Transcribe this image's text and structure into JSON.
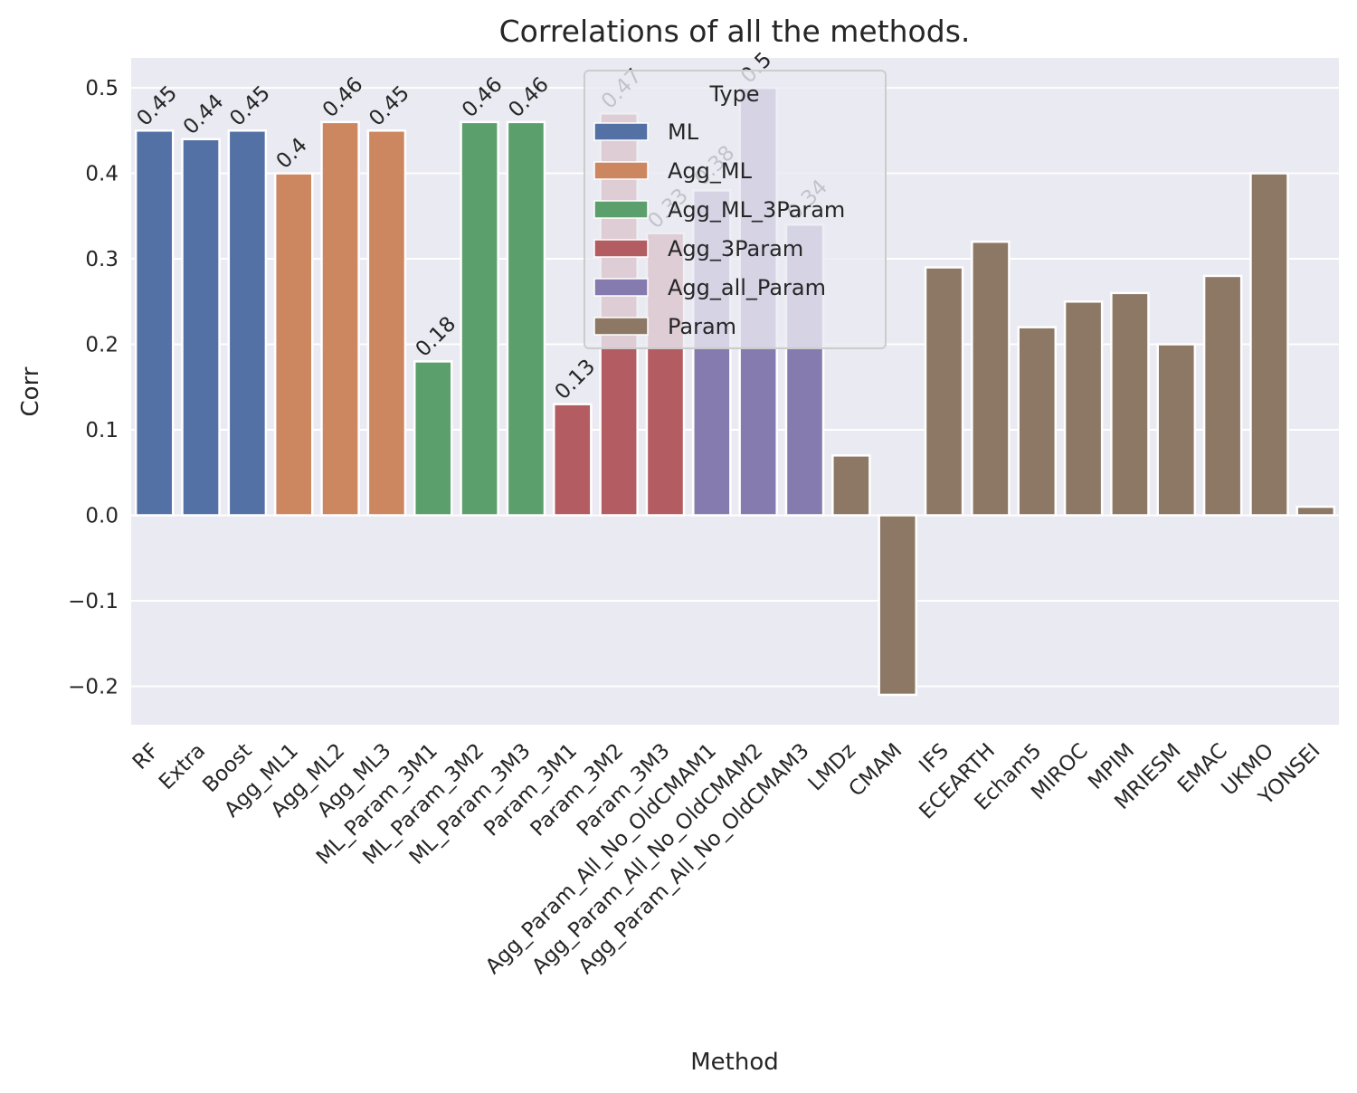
{
  "chart_data": {
    "type": "bar",
    "title": "Correlations of all the methods.",
    "xlabel": "Method",
    "ylabel": "Corr",
    "ylim": [
      -0.245,
      0.535
    ],
    "yticks": [
      "−0.2",
      "−0.1",
      "0.0",
      "0.1",
      "0.2",
      "0.3",
      "0.4",
      "0.5"
    ],
    "ytick_values": [
      -0.2,
      -0.1,
      0.0,
      0.1,
      0.2,
      0.3,
      0.4,
      0.5
    ],
    "grid": true,
    "legend": {
      "title": "Type",
      "placement": "top-center",
      "entries": [
        {
          "name": "ML",
          "color": "#5471a6"
        },
        {
          "name": "Agg_ML",
          "color": "#cd8760"
        },
        {
          "name": "Agg_ML_3Param",
          "color": "#5b9f6c"
        },
        {
          "name": "Agg_3Param",
          "color": "#b35c62"
        },
        {
          "name": "Agg_all_Param",
          "color": "#867baf"
        },
        {
          "name": "Param",
          "color": "#8c7864"
        }
      ]
    },
    "categories": [
      "RF",
      "Extra",
      "Boost",
      "Agg_ML1",
      "Agg_ML2",
      "Agg_ML3",
      "ML_Param_3M1",
      "ML_Param_3M2",
      "ML_Param_3M3",
      "Param_3M1",
      "Param_3M2",
      "Param_3M3",
      "Agg_Param_All_No_OldCMAM1",
      "Agg_Param_All_No_OldCMAM2",
      "Agg_Param_All_No_OldCMAM3",
      "LMDz",
      "CMAM",
      "IFS",
      "ECEARTH",
      "Echam5",
      "MIROC",
      "MPIM",
      "MRIESM",
      "EMAC",
      "UKMO",
      "YONSEI"
    ],
    "values": [
      0.45,
      0.44,
      0.45,
      0.4,
      0.46,
      0.45,
      0.18,
      0.46,
      0.46,
      0.13,
      0.47,
      0.33,
      0.38,
      0.5,
      0.34,
      0.07,
      -0.21,
      0.29,
      0.32,
      0.22,
      0.25,
      0.26,
      0.2,
      0.28,
      0.4,
      0.01
    ],
    "types": [
      "ML",
      "ML",
      "ML",
      "Agg_ML",
      "Agg_ML",
      "Agg_ML",
      "Agg_ML_3Param",
      "Agg_ML_3Param",
      "Agg_ML_3Param",
      "Agg_3Param",
      "Agg_3Param",
      "Agg_3Param",
      "Agg_all_Param",
      "Agg_all_Param",
      "Agg_all_Param",
      "Param",
      "Param",
      "Param",
      "Param",
      "Param",
      "Param",
      "Param",
      "Param",
      "Param",
      "Param",
      "Param"
    ],
    "data_labels": [
      "0.45",
      "0.44",
      "0.45",
      "0.4",
      "0.46",
      "0.45",
      "0.18",
      "0.46",
      "0.46",
      "0.13",
      "0.47",
      "0.33",
      "0.38",
      "0.5",
      "0.34",
      "",
      "",
      "",
      "",
      "",
      "",
      "",
      "",
      "",
      "",
      ""
    ],
    "colors": {
      "plot_background": "#eaeaf2",
      "grid": "#ffffff",
      "legend_background": "#eaeaf2",
      "legend_border": "#cccccc"
    }
  }
}
